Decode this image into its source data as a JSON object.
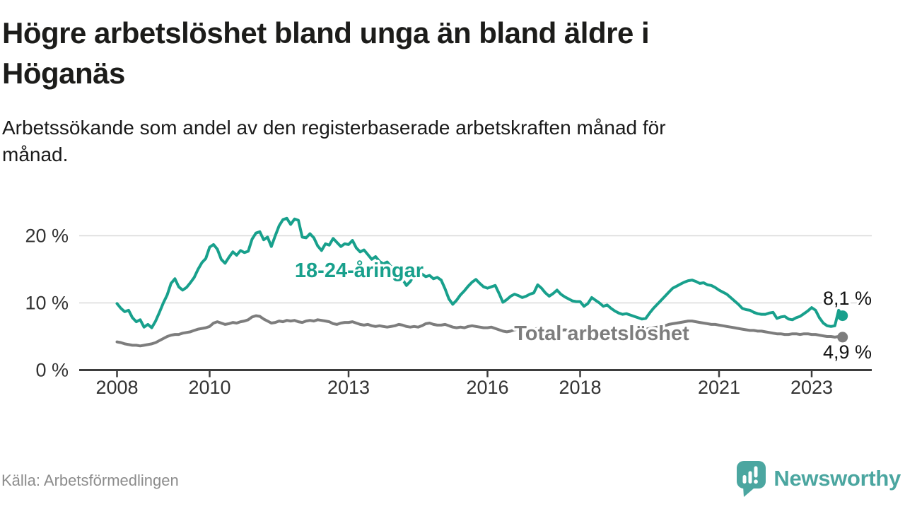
{
  "chart_data": {
    "type": "line",
    "title": "Högre arbetslöshet bland unga än bland äldre i\nHöganäs",
    "subtitle": "Arbetssökande som andel av den registerbaserade arbetskraften månad för\nmånad.",
    "source": "Källa: Arbetsförmedlingen",
    "x_unit": "month",
    "x_start": "2008-01",
    "x_end": "2023-09",
    "x_ticks": [
      2008,
      2010,
      2013,
      2016,
      2018,
      2021,
      2023
    ],
    "y_ticks": [
      {
        "value": 0,
        "label": "0 %"
      },
      {
        "value": 10,
        "label": "10 %"
      },
      {
        "value": 20,
        "label": "20 %"
      }
    ],
    "ylim": [
      0,
      24
    ],
    "grid": "horizontal",
    "legend_position": "inline-labels",
    "series": [
      {
        "name": "18-24-åringar",
        "color": "#18a08c",
        "end_label": "8,1 %",
        "end_value": 8.1,
        "values": [
          9.9,
          9.2,
          8.7,
          8.9,
          7.8,
          7.2,
          7.5,
          6.4,
          6.8,
          6.3,
          7.3,
          8.6,
          10.0,
          11.2,
          12.9,
          13.6,
          12.4,
          11.9,
          12.3,
          13.0,
          13.8,
          15.0,
          16.0,
          16.6,
          18.3,
          18.7,
          18.0,
          16.5,
          15.9,
          16.8,
          17.6,
          17.1,
          17.8,
          17.5,
          17.7,
          19.5,
          20.4,
          20.6,
          19.4,
          19.8,
          18.4,
          20.0,
          21.5,
          22.4,
          22.6,
          21.7,
          22.5,
          22.3,
          19.8,
          19.7,
          20.3,
          19.7,
          18.5,
          17.8,
          18.8,
          18.6,
          19.6,
          19.0,
          18.4,
          18.8,
          18.7,
          19.3,
          18.2,
          17.6,
          17.9,
          17.2,
          16.5,
          16.9,
          16.2,
          15.8,
          16.1,
          15.4,
          15.3,
          14.8,
          13.5,
          12.6,
          13.2,
          14.2,
          13.8,
          14.3,
          13.9,
          14.1,
          13.6,
          13.8,
          13.4,
          12.1,
          10.6,
          9.8,
          10.4,
          11.2,
          11.8,
          12.5,
          13.1,
          13.5,
          12.9,
          12.4,
          12.2,
          12.4,
          12.6,
          11.4,
          10.1,
          10.5,
          11.0,
          11.3,
          11.1,
          10.8,
          11.0,
          11.3,
          11.5,
          12.7,
          12.2,
          11.5,
          11.0,
          11.4,
          11.9,
          11.3,
          10.9,
          10.6,
          10.3,
          10.2,
          10.2,
          9.5,
          9.9,
          10.8,
          10.4,
          10.0,
          9.5,
          9.7,
          9.2,
          8.8,
          8.5,
          8.3,
          8.4,
          8.2,
          8.0,
          7.8,
          7.6,
          7.7,
          8.5,
          9.2,
          9.8,
          10.4,
          11.0,
          11.6,
          12.2,
          12.5,
          12.8,
          13.1,
          13.3,
          13.4,
          13.2,
          12.9,
          13.0,
          12.7,
          12.6,
          12.3,
          11.9,
          11.6,
          11.3,
          10.8,
          10.3,
          9.8,
          9.2,
          9.0,
          8.9,
          8.6,
          8.4,
          8.3,
          8.3,
          8.5,
          8.6,
          7.7,
          7.9,
          8.0,
          7.6,
          7.5,
          7.8,
          8.0,
          8.4,
          8.8,
          9.3,
          8.9,
          7.8,
          7.0,
          6.6,
          6.5,
          6.6,
          8.9,
          8.1
        ]
      },
      {
        "name": "Total arbetslöshet",
        "color": "#7d7d7d",
        "end_label": "4,9 %",
        "end_value": 4.9,
        "values": [
          4.2,
          4.1,
          3.9,
          3.8,
          3.7,
          3.7,
          3.6,
          3.7,
          3.8,
          3.9,
          4.1,
          4.4,
          4.7,
          5.0,
          5.2,
          5.3,
          5.3,
          5.5,
          5.6,
          5.7,
          5.9,
          6.1,
          6.2,
          6.3,
          6.5,
          7.0,
          7.2,
          7.0,
          6.8,
          6.9,
          7.1,
          7.0,
          7.2,
          7.3,
          7.5,
          7.9,
          8.1,
          8.0,
          7.6,
          7.3,
          7.0,
          7.1,
          7.3,
          7.2,
          7.4,
          7.3,
          7.4,
          7.2,
          7.1,
          7.3,
          7.4,
          7.3,
          7.5,
          7.4,
          7.3,
          7.2,
          6.9,
          6.8,
          7.0,
          7.1,
          7.1,
          7.2,
          7.0,
          6.8,
          6.7,
          6.8,
          6.6,
          6.5,
          6.6,
          6.5,
          6.4,
          6.5,
          6.6,
          6.8,
          6.7,
          6.5,
          6.4,
          6.5,
          6.4,
          6.6,
          6.9,
          7.0,
          6.8,
          6.7,
          6.7,
          6.8,
          6.6,
          6.4,
          6.3,
          6.4,
          6.3,
          6.5,
          6.6,
          6.5,
          6.4,
          6.3,
          6.3,
          6.4,
          6.2,
          6.0,
          5.8,
          5.7,
          5.8,
          6.0,
          6.1,
          6.0,
          5.9,
          6.0,
          6.1,
          6.2,
          6.1,
          5.9,
          5.8,
          5.9,
          6.0,
          5.9,
          6.0,
          5.9,
          5.8,
          5.9,
          6.0,
          5.9,
          5.8,
          5.7,
          5.6,
          5.7,
          5.6,
          5.5,
          5.6,
          5.7,
          5.8,
          5.9,
          6.0,
          5.9,
          5.8,
          5.9,
          6.0,
          6.1,
          6.2,
          6.3,
          6.4,
          6.5,
          6.6,
          6.8,
          6.9,
          7.0,
          7.1,
          7.2,
          7.3,
          7.3,
          7.2,
          7.1,
          7.0,
          6.9,
          6.8,
          6.8,
          6.7,
          6.6,
          6.5,
          6.4,
          6.3,
          6.2,
          6.1,
          6.0,
          5.9,
          5.9,
          5.8,
          5.8,
          5.7,
          5.6,
          5.5,
          5.4,
          5.4,
          5.3,
          5.3,
          5.4,
          5.4,
          5.3,
          5.4,
          5.4,
          5.3,
          5.3,
          5.2,
          5.1,
          5.0,
          5.0,
          4.9,
          5.0,
          4.9
        ]
      }
    ]
  },
  "branding": {
    "logo_text": "Newsworthy",
    "logo_color": "#4ba6a0",
    "logo_icon": "bar-chart-speech-bubble"
  }
}
